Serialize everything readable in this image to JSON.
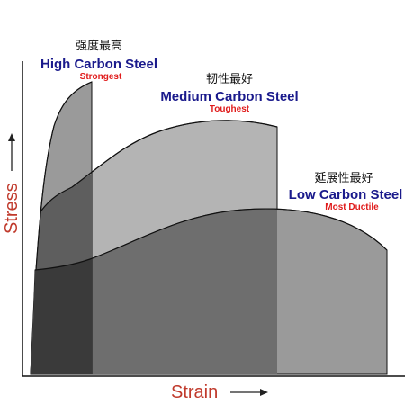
{
  "axes": {
    "x_label": "Strain",
    "y_label": "Stress"
  },
  "curves": [
    {
      "key": "high",
      "chinese_label": "强度最高",
      "name": "High Carbon Steel",
      "property": "Strongest",
      "fill": "#9a9a9a",
      "overlap_fill": "#3a3a3a"
    },
    {
      "key": "medium",
      "chinese_label": "韧性最好",
      "name": "Medium Carbon Steel",
      "property": "Toughest",
      "fill": "#b4b4b4",
      "overlap_fill": "#5e5e5e"
    },
    {
      "key": "low",
      "chinese_label": "延展性最好",
      "name": "Low Carbon Steel",
      "property": "Most Ductile",
      "fill": "#9a9a9a",
      "overlap_fill": "#6e6e6e"
    }
  ],
  "colors": {
    "title_blue": "#1a1a8c",
    "property_red": "#e01b1b",
    "axis_label_red": "#c0392b"
  }
}
